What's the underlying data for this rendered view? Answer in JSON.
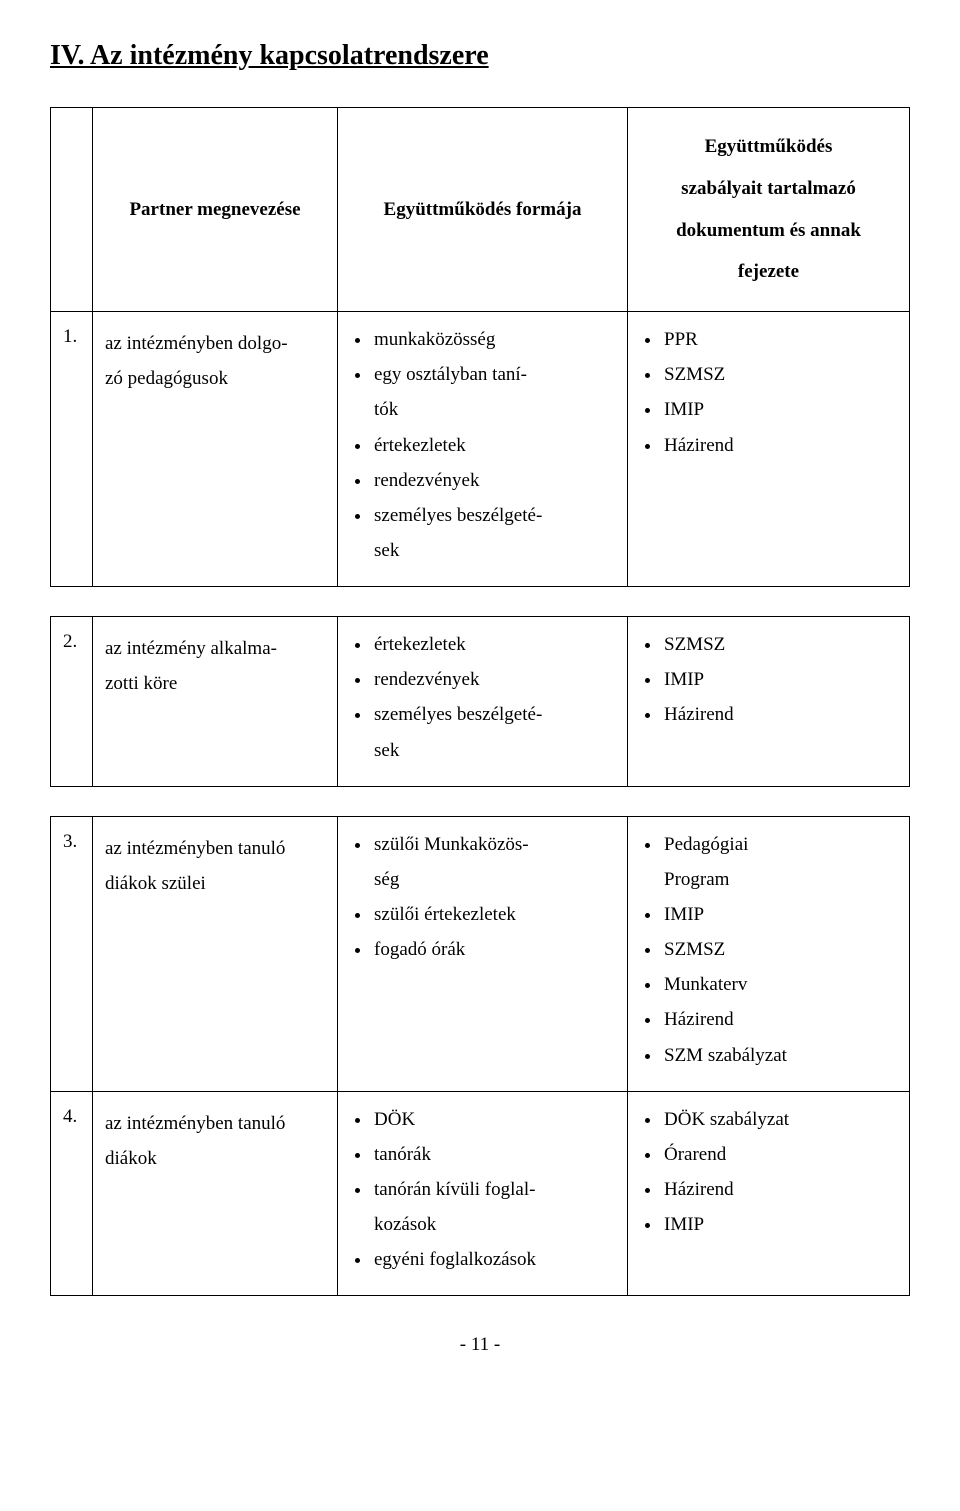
{
  "heading": "IV. Az intézmény kapcsolatrendszere",
  "header": {
    "col1": "",
    "col2": "Partner megnevezése",
    "col3": "Együttműködés formája",
    "col4_line1": "Együttműködés",
    "col4_line2": "szabályait tartalmazó",
    "col4_line3": "dokumentum és annak",
    "col4_line4": "fejezete"
  },
  "rows": [
    {
      "num": "1.",
      "partner_line1": "az intézményben dolgo-",
      "partner_line2": "zó pedagógusok",
      "forms": [
        "munkaközösség",
        "egy osztályban taní-",
        "tók",
        "értekezletek",
        "rendezvények",
        "személyes beszélgeté-",
        "sek"
      ],
      "forms_indent": [
        false,
        false,
        true,
        false,
        false,
        false,
        true
      ],
      "docs": [
        "PPR",
        "SZMSZ",
        "IMIP",
        "Házirend"
      ]
    },
    {
      "num": "2.",
      "partner_line1": "az intézmény alkalma-",
      "partner_line2": "zotti köre",
      "forms": [
        "értekezletek",
        "rendezvények",
        "személyes beszélgeté-",
        "sek"
      ],
      "forms_indent": [
        false,
        false,
        false,
        true
      ],
      "docs": [
        "SZMSZ",
        "IMIP",
        "Házirend"
      ]
    },
    {
      "num": "3.",
      "partner_line1": "az intézményben tanuló",
      "partner_line2": "diákok szülei",
      "forms": [
        "szülői Munkaközös-",
        "ség",
        "szülői értekezletek",
        "fogadó órák"
      ],
      "forms_indent": [
        false,
        true,
        false,
        false
      ],
      "docs": [
        "Pedagógiai",
        "Program",
        "IMIP",
        "SZMSZ",
        "Munkaterv",
        "Házirend",
        "SZM szabályzat"
      ],
      "docs_indent": [
        false,
        true,
        false,
        false,
        false,
        false,
        false
      ]
    },
    {
      "num": "4.",
      "partner_line1": "az intézményben tanuló",
      "partner_line2": "diákok",
      "forms": [
        "DÖK",
        "tanórák",
        "tanórán kívüli foglal-",
        "kozások",
        "egyéni foglalkozások"
      ],
      "forms_indent": [
        false,
        false,
        false,
        true,
        false
      ],
      "docs": [
        "DÖK szabályzat",
        "Órarend",
        "Házirend",
        "IMIP"
      ]
    }
  ],
  "page_number": "- 11 -"
}
